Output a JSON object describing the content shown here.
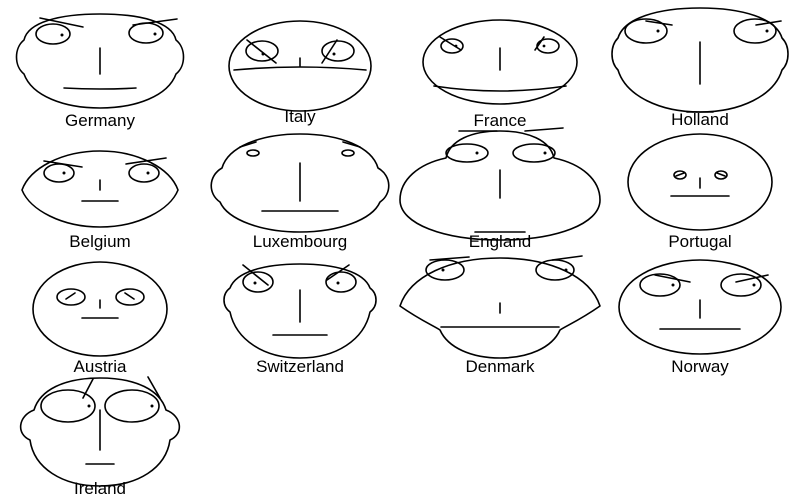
{
  "chart_data": {
    "type": "chernoff-faces",
    "faces": [
      {
        "label": "Germany"
      },
      {
        "label": "Italy"
      },
      {
        "label": "France"
      },
      {
        "label": "Holland"
      },
      {
        "label": "Belgium"
      },
      {
        "label": "Luxembourg"
      },
      {
        "label": "England"
      },
      {
        "label": "Portugal"
      },
      {
        "label": "Austria"
      },
      {
        "label": "Switzerland"
      },
      {
        "label": "Denmark"
      },
      {
        "label": "Norway"
      },
      {
        "label": "Ireland"
      }
    ]
  }
}
